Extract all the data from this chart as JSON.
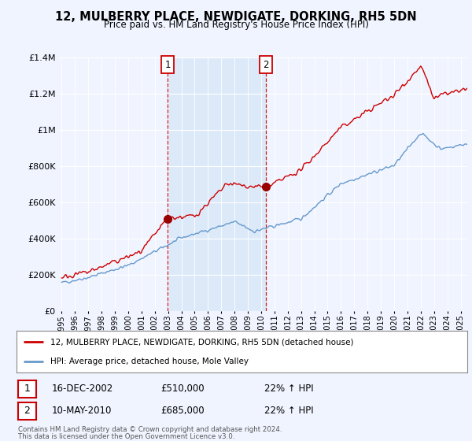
{
  "title": "12, MULBERRY PLACE, NEWDIGATE, DORKING, RH5 5DN",
  "subtitle": "Price paid vs. HM Land Registry's House Price Index (HPI)",
  "legend_line1": "12, MULBERRY PLACE, NEWDIGATE, DORKING, RH5 5DN (detached house)",
  "legend_line2": "HPI: Average price, detached house, Mole Valley",
  "marker1_date": "16-DEC-2002",
  "marker1_price": "£510,000",
  "marker1_hpi": "22% ↑ HPI",
  "marker1_year": 2002.96,
  "marker2_date": "10-MAY-2010",
  "marker2_price": "£685,000",
  "marker2_hpi": "22% ↑ HPI",
  "marker2_year": 2010.36,
  "footer1": "Contains HM Land Registry data © Crown copyright and database right 2024.",
  "footer2": "This data is licensed under the Open Government Licence v3.0.",
  "red_color": "#cc0000",
  "blue_color": "#6699cc",
  "blue_fill": "#ddeeff",
  "vline_color": "#cc0000",
  "background_color": "#f0f4ff",
  "ylim": [
    0,
    1400000
  ],
  "xlim": [
    1994.8,
    2025.5
  ],
  "yticks": [
    0,
    200000,
    400000,
    600000,
    800000,
    1000000,
    1200000,
    1400000
  ],
  "ytick_labels": [
    "£0",
    "£200K",
    "£400K",
    "£600K",
    "£800K",
    "£1M",
    "£1.2M",
    "£1.4M"
  ],
  "xticks": [
    1995,
    1996,
    1997,
    1998,
    1999,
    2000,
    2001,
    2002,
    2003,
    2004,
    2005,
    2006,
    2007,
    2008,
    2009,
    2010,
    2011,
    2012,
    2013,
    2014,
    2015,
    2016,
    2017,
    2018,
    2019,
    2020,
    2021,
    2022,
    2023,
    2024,
    2025
  ]
}
